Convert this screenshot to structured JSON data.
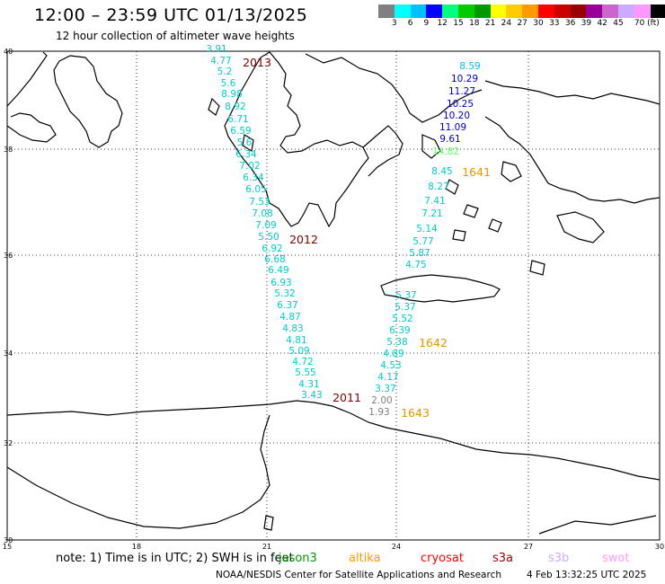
{
  "header": {
    "title": "12:00 – 23:59 UTC 01/13/2025",
    "subtitle": "12 hour collection of altimeter wave heights"
  },
  "colorbar": {
    "colors": [
      "#808080",
      "#00ffff",
      "#00bfff",
      "#0000ff",
      "#00ff80",
      "#00cc00",
      "#009900",
      "#ffff00",
      "#ffcc00",
      "#ff9900",
      "#ff0000",
      "#cc0000",
      "#990000",
      "#990099",
      "#cc66cc",
      "#ccaaff",
      "#ff99ff",
      "#000000"
    ],
    "labels": [
      "3",
      "6",
      "9",
      "12",
      "15",
      "18",
      "21",
      "24",
      "27",
      "30",
      "33",
      "36",
      "39",
      "42",
      "45",
      "70 (ft)"
    ]
  },
  "map": {
    "lat_labels": [
      "40",
      "38",
      "36",
      "34",
      "32",
      "30"
    ],
    "lon_labels": [
      "15",
      "18",
      "21",
      "24",
      "27",
      "30"
    ],
    "pass_labels": [
      {
        "text": "2013",
        "color": "#800000"
      },
      {
        "text": "2012",
        "color": "#800000"
      },
      {
        "text": "2011",
        "color": "#800000"
      },
      {
        "text": "1641",
        "color": "#e69500"
      },
      {
        "text": "1642",
        "color": "#e69500"
      },
      {
        "text": "1643",
        "color": "#e69500"
      }
    ],
    "track_2013": [
      "3.91",
      "4.77",
      "5.2",
      "5.6",
      "8.98",
      "8.92",
      "6.71",
      "6.59",
      "5.6",
      "6.34",
      "7.02",
      "6.34",
      "6.05",
      "7.53",
      "7.08",
      "7.09",
      "5.50",
      "6.92",
      "6.68",
      "6.49",
      "6.93",
      "5.32",
      "6.37",
      "4.87",
      "4.83",
      "4.81",
      "5.09",
      "4.72",
      "5.55",
      "4.31",
      "3.43"
    ],
    "track_1641": [
      {
        "v": "8.59",
        "c": "#00bfff"
      },
      {
        "v": "10.29",
        "c": "#0000cc"
      },
      {
        "v": "11.27",
        "c": "#0000cc"
      },
      {
        "v": "10.25",
        "c": "#0000cc"
      },
      {
        "v": "10.20",
        "c": "#0000cc"
      },
      {
        "v": "11.09",
        "c": "#0000cc"
      },
      {
        "v": "9.61",
        "c": "#0000cc"
      },
      {
        "v": "14.82",
        "c": "#66ff66"
      },
      {
        "v": "8.45",
        "c": "#00cccc"
      },
      {
        "v": "8.27",
        "c": "#00cccc"
      },
      {
        "v": "7.41",
        "c": "#00cccc"
      },
      {
        "v": "7.21",
        "c": "#00cccc"
      },
      {
        "v": "5.14",
        "c": "#00cccc"
      },
      {
        "v": "5.77",
        "c": "#00cccc"
      },
      {
        "v": "5.87",
        "c": "#00cccc"
      },
      {
        "v": "4.75",
        "c": "#00cccc"
      }
    ],
    "track_1642": [
      {
        "v": "5.37",
        "c": "#00cccc"
      },
      {
        "v": "5.37",
        "c": "#00cccc"
      },
      {
        "v": "5.52",
        "c": "#00cccc"
      },
      {
        "v": "6.39",
        "c": "#00cccc"
      },
      {
        "v": "5.38",
        "c": "#00cccc"
      },
      {
        "v": "4.89",
        "c": "#00cccc"
      },
      {
        "v": "4.53",
        "c": "#00cccc"
      },
      {
        "v": "4.17",
        "c": "#00cccc"
      },
      {
        "v": "3.37",
        "c": "#00cccc"
      },
      {
        "v": "2.00",
        "c": "#808080"
      },
      {
        "v": "1.93",
        "c": "#808080"
      }
    ]
  },
  "note": {
    "prefix": "note:  1) Time is in UTC;  2) SWH is in feet",
    "satellites": [
      {
        "name": "jason3",
        "color": "#009900"
      },
      {
        "name": "altika",
        "color": "#ff9900"
      },
      {
        "name": "cryosat",
        "color": "#ff0000"
      },
      {
        "name": "s3a",
        "color": "#990000"
      },
      {
        "name": "s3b",
        "color": "#ccaaff"
      },
      {
        "name": "swot",
        "color": "#ff99ff"
      }
    ]
  },
  "footer": {
    "credit": "NOAA/NESDIS Center for Satellite Applications and Research",
    "timestamp": "4 Feb 13:32:25 UTC 2025"
  }
}
